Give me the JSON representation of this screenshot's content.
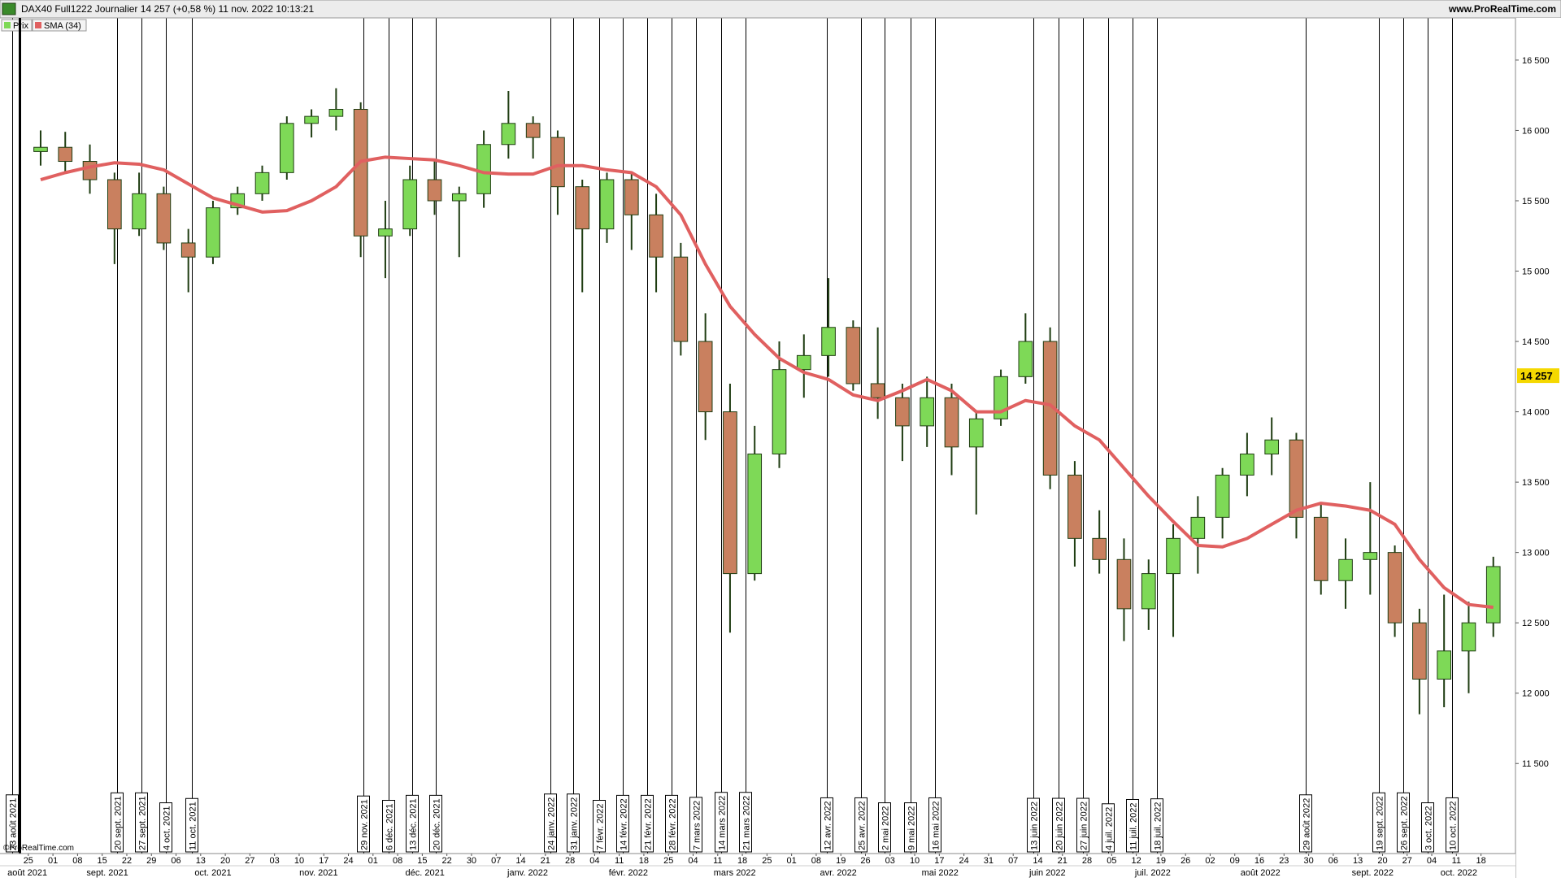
{
  "chart_data": {
    "type": "candlestick",
    "title": "DAX40 Full1222 Journalier 14 257 (+0,58 %) 11 nov. 2022 10:13:21",
    "site": "www.ProRealTime.com",
    "watermark": "©ProRealTime.com",
    "xlim": [
      -1.15,
      60.4
    ],
    "ylim": [
      10860,
      16800
    ],
    "yticks": [
      {
        "value": 11500,
        "label": "11 500"
      },
      {
        "value": 12000,
        "label": "12 000"
      },
      {
        "value": 12500,
        "label": "12 500"
      },
      {
        "value": 13000,
        "label": "13 000"
      },
      {
        "value": 13500,
        "label": "13 500"
      },
      {
        "value": 14000,
        "label": "14 000"
      },
      {
        "value": 14500,
        "label": "14 500"
      },
      {
        "value": 15000,
        "label": "15 000"
      },
      {
        "value": 15500,
        "label": "15 500"
      },
      {
        "value": 16000,
        "label": "16 000"
      },
      {
        "value": 16500,
        "label": "16 500"
      }
    ],
    "last": {
      "value": 14257,
      "label": "14 257",
      "color": "#f5d800"
    },
    "xticks": [
      {
        "value": 0,
        "label": "25"
      },
      {
        "value": 1,
        "label": "01"
      },
      {
        "value": 2,
        "label": "08"
      },
      {
        "value": 3,
        "label": "15"
      },
      {
        "value": 4,
        "label": "22"
      },
      {
        "value": 5,
        "label": "29"
      },
      {
        "value": 6,
        "label": "06"
      },
      {
        "value": 7,
        "label": "13"
      },
      {
        "value": 8,
        "label": "20"
      },
      {
        "value": 9,
        "label": "27"
      },
      {
        "value": 10,
        "label": "03"
      },
      {
        "value": 11,
        "label": "10"
      },
      {
        "value": 12,
        "label": "17"
      },
      {
        "value": 13,
        "label": "24"
      },
      {
        "value": 14,
        "label": "01"
      },
      {
        "value": 15,
        "label": "08"
      },
      {
        "value": 16,
        "label": "15"
      },
      {
        "value": 17,
        "label": "22"
      },
      {
        "value": 18,
        "label": "30"
      },
      {
        "value": 19,
        "label": "07"
      },
      {
        "value": 20,
        "label": "14"
      },
      {
        "value": 21,
        "label": "21"
      },
      {
        "value": 22,
        "label": "28"
      },
      {
        "value": 23,
        "label": "04"
      },
      {
        "value": 24,
        "label": "11"
      },
      {
        "value": 25,
        "label": "18"
      },
      {
        "value": 26,
        "label": "25"
      },
      {
        "value": 27,
        "label": "04"
      },
      {
        "value": 28,
        "label": "11"
      },
      {
        "value": 29,
        "label": "18"
      },
      {
        "value": 30,
        "label": "25"
      },
      {
        "value": 31,
        "label": "01"
      },
      {
        "value": 32,
        "label": "08"
      },
      {
        "value": 33,
        "label": "19"
      },
      {
        "value": 34,
        "label": "26"
      },
      {
        "value": 35,
        "label": "03"
      },
      {
        "value": 36,
        "label": "10"
      },
      {
        "value": 37,
        "label": "17"
      },
      {
        "value": 38,
        "label": "24"
      },
      {
        "value": 39,
        "label": "31"
      },
      {
        "value": 40,
        "label": "07"
      },
      {
        "value": 41,
        "label": "14"
      },
      {
        "value": 42,
        "label": "21"
      },
      {
        "value": 43,
        "label": "28"
      },
      {
        "value": 44,
        "label": "05"
      },
      {
        "value": 45,
        "label": "12"
      },
      {
        "value": 46,
        "label": "19"
      },
      {
        "value": 47,
        "label": "26"
      },
      {
        "value": 48,
        "label": "02"
      },
      {
        "value": 49,
        "label": "09"
      },
      {
        "value": 50,
        "label": "16"
      },
      {
        "value": 51,
        "label": "23"
      },
      {
        "value": 52,
        "label": "30"
      },
      {
        "value": 53,
        "label": "06"
      },
      {
        "value": 54,
        "label": "13"
      },
      {
        "value": 55,
        "label": "20"
      },
      {
        "value": 56,
        "label": "27"
      },
      {
        "value": 57,
        "label": "04"
      },
      {
        "value": 58,
        "label": "11"
      },
      {
        "value": 59,
        "label": "18"
      }
    ],
    "months": [
      {
        "value": -0.04,
        "label": "août 2021"
      },
      {
        "value": 3.21,
        "label": "sept. 2021"
      },
      {
        "value": 7.5,
        "label": "oct. 2021"
      },
      {
        "value": 11.79,
        "label": "nov. 2021"
      },
      {
        "value": 16.11,
        "label": "déc. 2021"
      },
      {
        "value": 20.28,
        "label": "janv. 2022"
      },
      {
        "value": 24.37,
        "label": "févr. 2022"
      },
      {
        "value": 28.69,
        "label": "mars 2022"
      },
      {
        "value": 32.9,
        "label": "avr. 2022"
      },
      {
        "value": 37.03,
        "label": "mai 2022"
      },
      {
        "value": 41.39,
        "label": "juin 2022"
      },
      {
        "value": 45.67,
        "label": "juil. 2022"
      },
      {
        "value": 50.04,
        "label": "août 2022"
      },
      {
        "value": 54.6,
        "label": "sept. 2022"
      },
      {
        "value": 58.1,
        "label": "oct. 2022"
      }
    ],
    "events": [
      {
        "x": -0.67,
        "label": "23 août 2021"
      },
      {
        "x": 3.61,
        "label": "20 sept. 2021"
      },
      {
        "x": 4.6,
        "label": "27 sept. 2021"
      },
      {
        "x": 5.6,
        "label": "4 oct. 2021"
      },
      {
        "x": 6.63,
        "label": "11 oct. 2021"
      },
      {
        "x": 13.61,
        "label": "29 nov. 2021"
      },
      {
        "x": 14.64,
        "label": "6 déc. 2021"
      },
      {
        "x": 15.6,
        "label": "13 déc. 2021"
      },
      {
        "x": 16.55,
        "label": "20 déc. 2021"
      },
      {
        "x": 21.19,
        "label": "24 janv. 2022"
      },
      {
        "x": 22.14,
        "label": "31 janv. 2022"
      },
      {
        "x": 23.17,
        "label": "7 févr. 2022"
      },
      {
        "x": 24.13,
        "label": "14 févr. 2022"
      },
      {
        "x": 25.12,
        "label": "21 févr. 2022"
      },
      {
        "x": 26.11,
        "label": "28 févr. 2022"
      },
      {
        "x": 27.1,
        "label": "7 mars 2022"
      },
      {
        "x": 28.13,
        "label": "14 mars 2022"
      },
      {
        "x": 29.13,
        "label": "21 mars 2022"
      },
      {
        "x": 32.42,
        "label": "12 avr. 2022"
      },
      {
        "x": 33.81,
        "label": "25 avr. 2022"
      },
      {
        "x": 34.76,
        "label": "2 mai 2022"
      },
      {
        "x": 35.83,
        "label": "9 mai 2022"
      },
      {
        "x": 36.83,
        "label": "16 mai 2022"
      },
      {
        "x": 40.83,
        "label": "13 juin 2022"
      },
      {
        "x": 41.83,
        "label": "20 juin 2022"
      },
      {
        "x": 42.82,
        "label": "27 juin 2022"
      },
      {
        "x": 43.85,
        "label": "4 juil. 2022"
      },
      {
        "x": 44.84,
        "label": "11 juil. 2022"
      },
      {
        "x": 45.83,
        "label": "18 juil. 2022"
      },
      {
        "x": 51.87,
        "label": "29 août 2022"
      },
      {
        "x": 54.84,
        "label": "19 sept. 2022"
      },
      {
        "x": 55.83,
        "label": "26 sept. 2022"
      },
      {
        "x": 56.83,
        "label": "3 oct. 2022"
      },
      {
        "x": 57.82,
        "label": "10 oct. 2022"
      }
    ],
    "candles": {
      "name": "Prix",
      "up_color": "#7ed957",
      "down_color": "#c9805f",
      "wick_color": "#1f3d12",
      "open": [
        15850,
        15880,
        15780,
        15650,
        15300,
        15550,
        15200,
        15100,
        15450,
        15550,
        15700,
        16050,
        16100,
        16150,
        15250,
        15300,
        15650,
        15500,
        15550,
        15900,
        16050,
        15950,
        15600,
        15300,
        15650,
        15400,
        15100,
        14500,
        14000,
        12850,
        13700,
        14300,
        14400,
        14600,
        14200,
        14100,
        13900,
        14100,
        13750,
        13950,
        14250,
        14500,
        13550,
        13100,
        12950,
        12600,
        12850,
        13100,
        13250,
        13550,
        13700,
        13800,
        13250,
        12800,
        12950,
        13000,
        12500,
        12100,
        12300,
        12500
      ],
      "high": [
        16000,
        15990,
        15900,
        15700,
        15700,
        15600,
        15300,
        15500,
        15600,
        15750,
        16100,
        16150,
        16300,
        16200,
        15500,
        15750,
        15800,
        15600,
        16000,
        16280,
        16100,
        16000,
        15650,
        15700,
        15700,
        15550,
        15200,
        14700,
        14200,
        13900,
        14500,
        14550,
        14950,
        14650,
        14600,
        14200,
        14250,
        14200,
        14000,
        14300,
        14700,
        14600,
        13650,
        13300,
        13100,
        12950,
        13200,
        13400,
        13600,
        13850,
        13960,
        13850,
        13350,
        13100,
        13500,
        13050,
        12600,
        12700,
        12650,
        12970
      ],
      "low": [
        15750,
        15700,
        15550,
        15050,
        15250,
        15150,
        14850,
        15050,
        15400,
        15500,
        15650,
        15950,
        16000,
        15100,
        14950,
        15250,
        15400,
        15100,
        15450,
        15800,
        15800,
        15400,
        14850,
        15200,
        15150,
        14850,
        14400,
        13800,
        12430,
        12800,
        13600,
        14100,
        14250,
        14150,
        13950,
        13650,
        13750,
        13550,
        13270,
        13900,
        14200,
        13450,
        12900,
        12850,
        12370,
        12450,
        12400,
        12850,
        13100,
        13400,
        13550,
        13100,
        12700,
        12600,
        12700,
        12400,
        11850,
        11900,
        12000,
        12400
      ],
      "close": [
        15880,
        15780,
        15650,
        15300,
        15550,
        15200,
        15100,
        15450,
        15550,
        15700,
        16050,
        16100,
        16150,
        15250,
        15300,
        15650,
        15500,
        15550,
        15900,
        16050,
        15950,
        15600,
        15300,
        15650,
        15400,
        15100,
        14500,
        14000,
        12850,
        13700,
        14300,
        14400,
        14600,
        14200,
        14100,
        13900,
        14100,
        13750,
        13950,
        14250,
        14500,
        13550,
        13100,
        12950,
        12600,
        12850,
        13100,
        13250,
        13550,
        13700,
        13800,
        13250,
        12800,
        12950,
        13000,
        12500,
        12100,
        12300,
        12500,
        12900
      ]
    },
    "sma": {
      "name": "SMA (34)",
      "color": "#e06060",
      "values": [
        15650,
        15700,
        15740,
        15770,
        15760,
        15720,
        15620,
        15520,
        15470,
        15420,
        15430,
        15500,
        15600,
        15780,
        15810,
        15800,
        15790,
        15750,
        15700,
        15690,
        15690,
        15750,
        15750,
        15720,
        15700,
        15600,
        15400,
        15050,
        14750,
        14550,
        14380,
        14280,
        14230,
        14120,
        14080,
        14150,
        14230,
        14150,
        14000,
        14000,
        14080,
        14050,
        13900,
        13800,
        13600,
        13400,
        13220,
        13050,
        13040,
        13100,
        13200,
        13300,
        13350,
        13330,
        13300,
        13200,
        12950,
        12750,
        12630,
        12610
      ]
    }
  }
}
